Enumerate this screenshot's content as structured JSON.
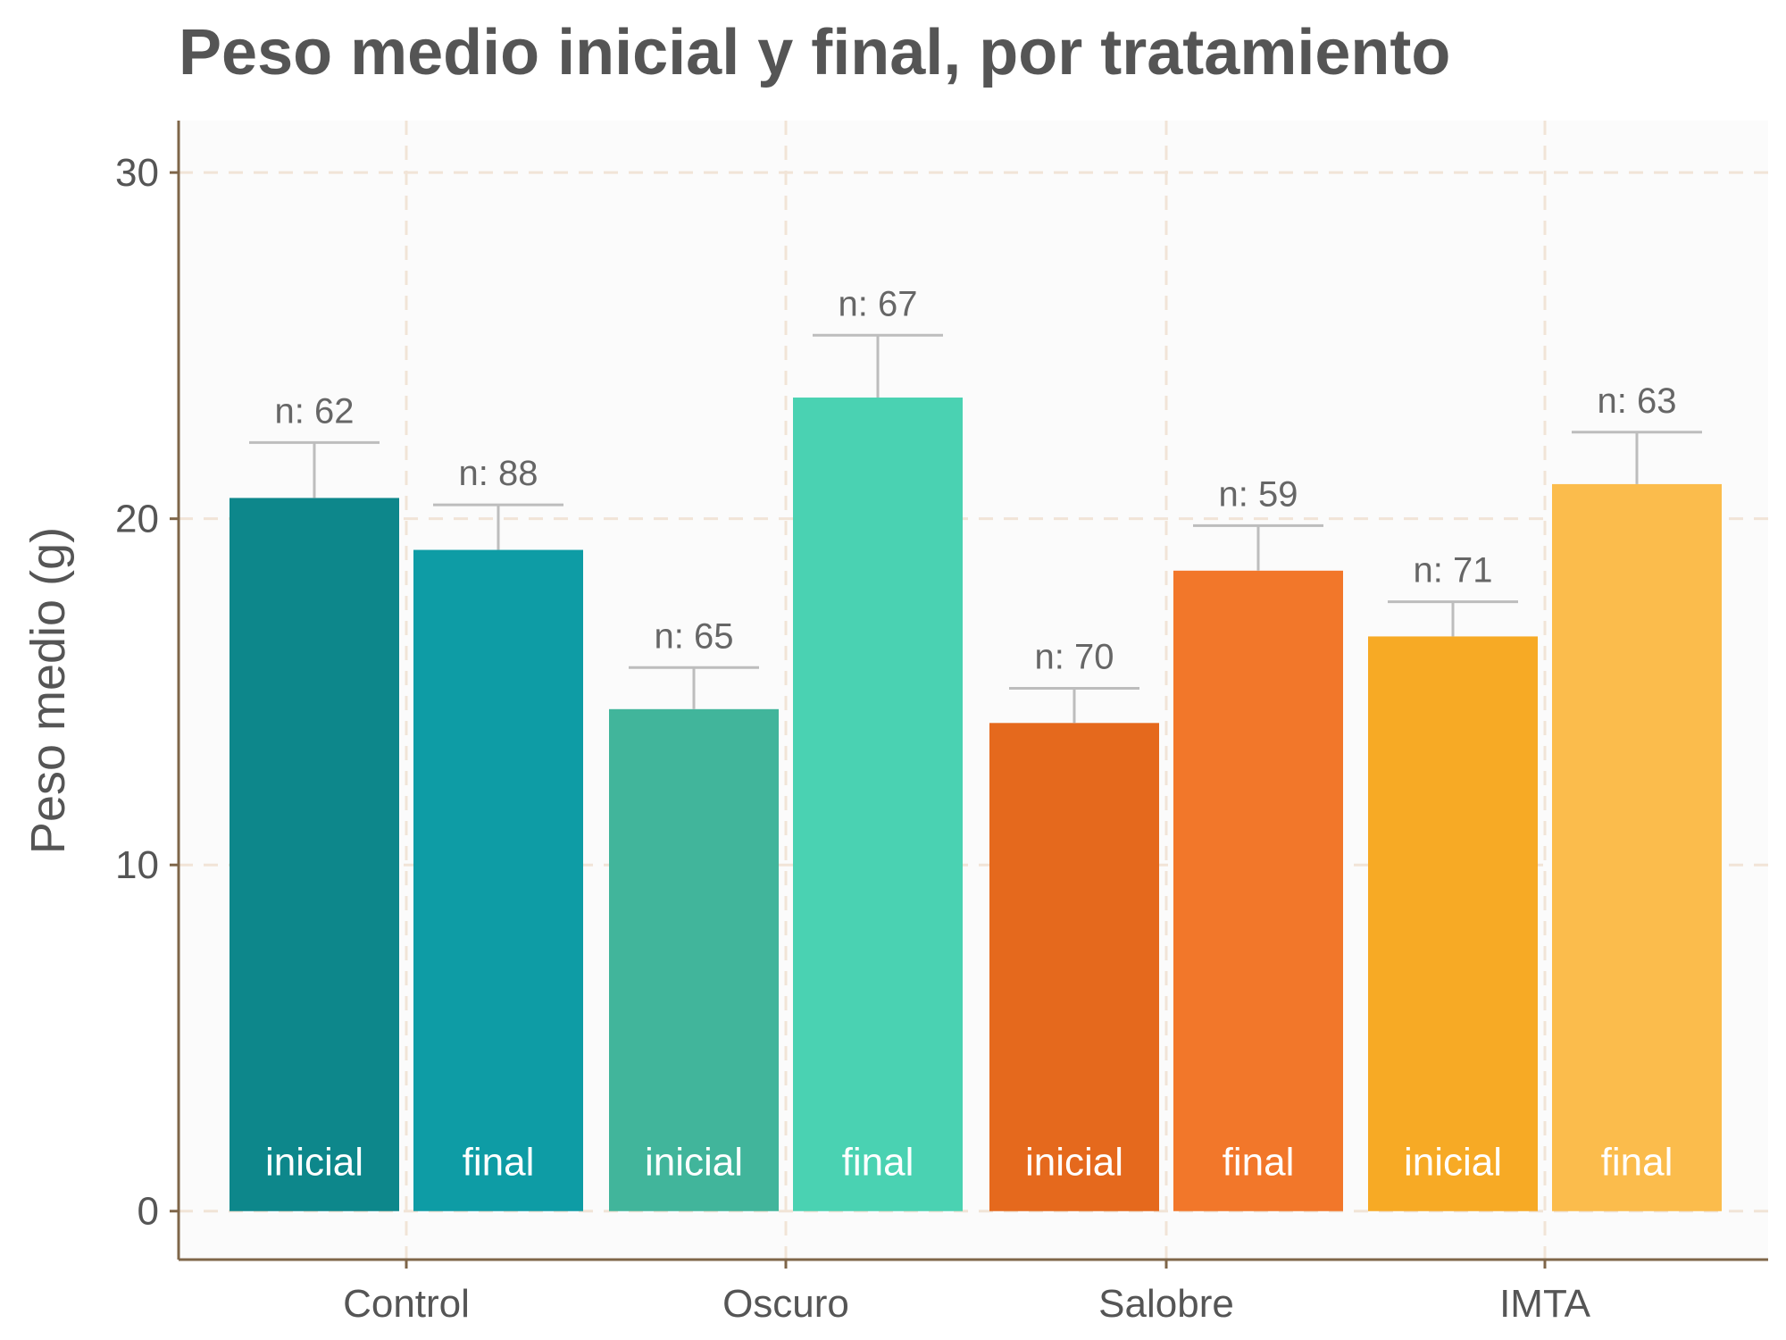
{
  "chart_data": {
    "type": "bar",
    "title": "Peso medio inicial y final, por tratamiento",
    "xlabel": "",
    "ylabel": "Peso medio (g)",
    "ylim": [
      -1.4,
      31.5
    ],
    "yticks": [
      0,
      10,
      20,
      30
    ],
    "grid": true,
    "categories": [
      "Control",
      "Oscuro",
      "Salobre",
      "IMTA"
    ],
    "series": [
      {
        "name": "inicial",
        "values": [
          20.6,
          14.5,
          14.1,
          16.6
        ],
        "error_upper": [
          22.2,
          15.7,
          15.1,
          17.6
        ],
        "n_labels": [
          "n: 62",
          "n: 65",
          "n: 70",
          "n: 71"
        ],
        "colors": [
          "#0d878b",
          "#41b59b",
          "#e5691d",
          "#f7aa25"
        ]
      },
      {
        "name": "final",
        "values": [
          19.1,
          23.5,
          18.5,
          21.0
        ],
        "error_upper": [
          20.4,
          25.3,
          19.8,
          22.5
        ],
        "n_labels": [
          "n: 88",
          "n: 67",
          "n: 59",
          "n: 63"
        ],
        "colors": [
          "#0e9ca5",
          "#4ad2b2",
          "#f2772a",
          "#fbbc4c"
        ]
      }
    ],
    "colors": {
      "panel_background": "#fbfbfb",
      "grid": "#f1e4d7",
      "axis": "#7f6649",
      "error_bar": "#bdbdbd"
    }
  }
}
